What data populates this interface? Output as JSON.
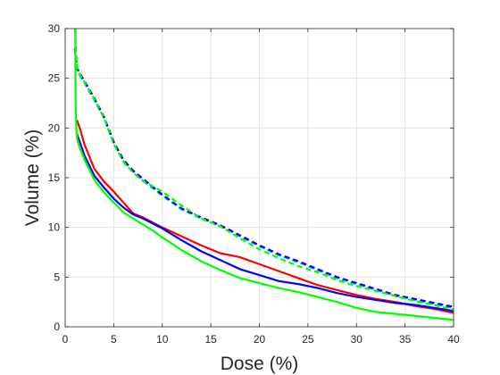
{
  "chart_data": {
    "type": "line",
    "xlabel": "Dose (%)",
    "ylabel": "Volume (%)",
    "xlim": [
      0,
      40
    ],
    "ylim": [
      0,
      30
    ],
    "xticks": [
      "0",
      "5",
      "10",
      "15",
      "20",
      "25",
      "30",
      "35",
      "40"
    ],
    "yticks": [
      "0",
      "5",
      "10",
      "15",
      "20",
      "25",
      "30"
    ],
    "grid": true,
    "legend": "none",
    "series": [
      {
        "color": "#ff0000",
        "style": "solid",
        "x": [
          1.2,
          1.5,
          2,
          3,
          4,
          5,
          6,
          7,
          8,
          9,
          10,
          12,
          14,
          16,
          18,
          20,
          22,
          24,
          26,
          28,
          30,
          32,
          34,
          36,
          38,
          40
        ],
        "y": [
          20.8,
          20.0,
          18.3,
          15.9,
          14.6,
          13.6,
          12.5,
          11.4,
          11.0,
          10.5,
          10.0,
          9.1,
          8.2,
          7.4,
          7.0,
          6.3,
          5.6,
          4.9,
          4.2,
          3.7,
          3.2,
          2.8,
          2.5,
          2.1,
          1.8,
          1.4
        ]
      },
      {
        "color": "#0000ff",
        "style": "solid",
        "x": [
          1.2,
          1.5,
          2,
          3,
          4,
          5,
          6,
          7,
          8,
          9,
          10,
          12,
          14,
          16,
          18,
          20,
          22,
          24,
          26,
          28,
          30,
          32,
          34,
          36,
          38,
          40
        ],
        "y": [
          19.4,
          18.6,
          17.2,
          15.2,
          14.0,
          12.9,
          12.0,
          11.3,
          10.9,
          10.4,
          9.9,
          8.7,
          7.6,
          6.7,
          5.8,
          5.2,
          4.6,
          4.3,
          3.9,
          3.4,
          3.0,
          2.7,
          2.4,
          2.2,
          1.9,
          1.6
        ]
      },
      {
        "color": "#00ff00",
        "style": "solid",
        "x": [
          1.2,
          1.5,
          2,
          3,
          4,
          5,
          6,
          7,
          8,
          9,
          10,
          12,
          14,
          16,
          18,
          20,
          22,
          24,
          26,
          28,
          30,
          32,
          34,
          36,
          38,
          40
        ],
        "y": [
          19.0,
          18.0,
          16.8,
          14.8,
          13.5,
          12.5,
          11.5,
          10.9,
          10.3,
          9.7,
          9.0,
          7.7,
          6.6,
          5.7,
          4.9,
          4.4,
          3.9,
          3.5,
          3.0,
          2.5,
          1.9,
          1.5,
          1.3,
          1.1,
          0.9,
          0.7
        ]
      },
      {
        "color": "#00b0f0",
        "style": "dashed",
        "x": [
          1.0,
          1.2,
          1.5,
          2,
          3,
          4,
          5,
          6,
          7,
          8,
          10,
          12,
          14,
          16,
          18,
          20,
          22,
          24,
          26,
          28,
          30,
          32,
          34,
          36,
          38,
          40
        ],
        "y": [
          28.0,
          26.0,
          25.3,
          24.5,
          22.8,
          21.0,
          18.5,
          16.7,
          15.6,
          14.7,
          13.2,
          11.8,
          10.9,
          10.1,
          9.1,
          8.1,
          7.2,
          6.5,
          5.7,
          4.9,
          4.3,
          3.7,
          3.1,
          2.7,
          2.3,
          1.9
        ]
      },
      {
        "color": "#0000ff",
        "style": "dashed",
        "x": [
          1.0,
          1.2,
          1.5,
          2,
          3,
          4,
          5,
          6,
          7,
          8,
          10,
          12,
          14,
          16,
          18,
          20,
          22,
          24,
          26,
          28,
          30,
          32,
          34,
          36,
          38,
          40
        ],
        "y": [
          28.0,
          26.1,
          25.5,
          24.7,
          23.0,
          21.1,
          18.6,
          16.8,
          15.7,
          14.9,
          13.3,
          11.9,
          11.0,
          10.2,
          9.2,
          8.2,
          7.3,
          6.6,
          5.8,
          5.0,
          4.4,
          3.8,
          3.2,
          2.8,
          2.4,
          2.0
        ]
      },
      {
        "color": "#00ff00",
        "style": "dashed",
        "x": [
          1.0,
          1.2,
          1.5,
          2,
          3,
          4,
          5,
          6,
          7,
          8,
          10,
          12,
          14,
          16,
          18,
          20,
          22,
          24,
          26,
          28,
          30,
          32,
          34,
          36,
          38,
          40
        ],
        "y": [
          30.0,
          26.2,
          25.4,
          24.6,
          22.9,
          21.0,
          18.4,
          16.6,
          15.5,
          14.7,
          13.6,
          12.2,
          10.9,
          10.1,
          8.9,
          7.8,
          6.9,
          6.1,
          5.5,
          4.7,
          4.1,
          3.6,
          3.1,
          2.6,
          2.2,
          1.7
        ]
      },
      {
        "color": "#00ff00",
        "style": "solid",
        "x": [
          1.05,
          1.05,
          1.1,
          1.2
        ],
        "y": [
          30.0,
          25.0,
          21.0,
          19.0
        ]
      }
    ]
  }
}
